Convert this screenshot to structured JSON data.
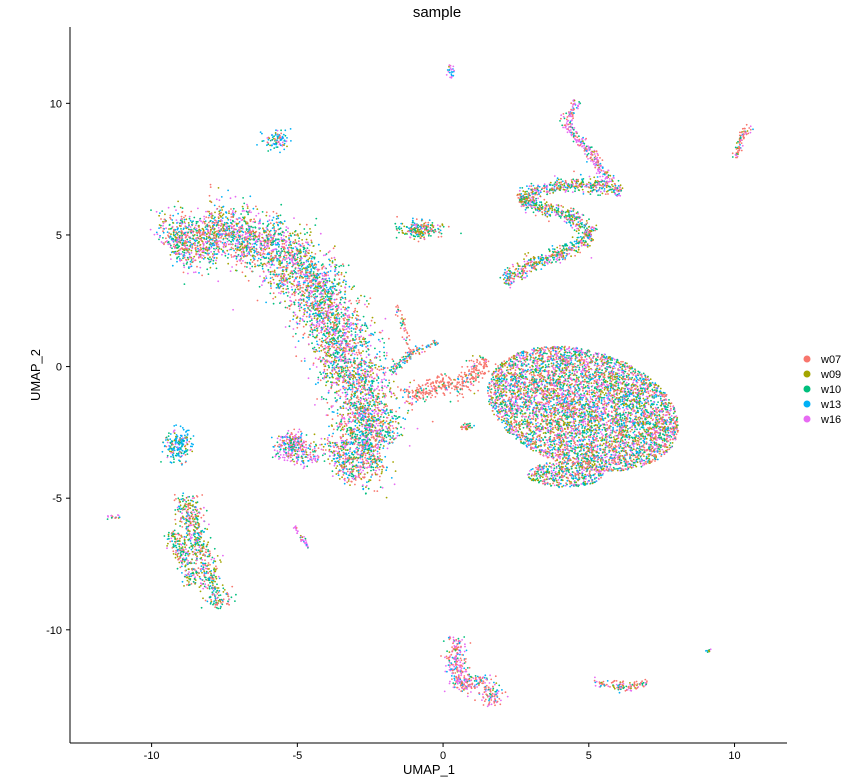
{
  "chart_data": {
    "type": "scatter",
    "title": "sample",
    "xlabel": "UMAP_1",
    "ylabel": "UMAP_2",
    "xlim": [
      -12.8,
      11.8
    ],
    "ylim": [
      -14.3,
      12.9
    ],
    "x_ticks": [
      -10,
      -5,
      0,
      5,
      10
    ],
    "y_ticks": [
      10,
      5,
      0,
      -5,
      -10
    ],
    "x_tick_labels": [
      "-10",
      "-5",
      "0",
      "5",
      "10"
    ],
    "y_tick_labels": [
      "10",
      "5",
      "0",
      "-5",
      "-10"
    ],
    "grid": false,
    "legend_position": "right",
    "series": [
      {
        "name": "w07",
        "color": "#F8766D"
      },
      {
        "name": "w09",
        "color": "#A3A500"
      },
      {
        "name": "w10",
        "color": "#00BF7D"
      },
      {
        "name": "w13",
        "color": "#00B0F6"
      },
      {
        "name": "w16",
        "color": "#E76BF3"
      }
    ],
    "clusters": [
      {
        "id": "big-left-arm",
        "shape": "path",
        "points": [
          [
            -9.3,
            4.4
          ],
          [
            -8.2,
            5.2
          ],
          [
            -6.5,
            5.0
          ],
          [
            -4.9,
            3.8
          ],
          [
            -4.0,
            2.2
          ],
          [
            -3.3,
            0.3
          ],
          [
            -2.6,
            -1.6
          ],
          [
            -2.4,
            -3.0
          ],
          [
            -3.6,
            -3.9
          ]
        ],
        "width": 1.25,
        "count": 5200,
        "weights": [
          0.24,
          0.16,
          0.22,
          0.16,
          0.22
        ]
      },
      {
        "id": "left-hook",
        "shape": "path",
        "points": [
          [
            -5.5,
            -3.5
          ],
          [
            -5.2,
            -2.6
          ],
          [
            -4.5,
            -3.7
          ]
        ],
        "width": 0.5,
        "count": 350,
        "weights": [
          0.2,
          0.1,
          0.15,
          0.15,
          0.4
        ]
      },
      {
        "id": "center-bridge",
        "shape": "path",
        "points": [
          [
            -1.3,
            -1.2
          ],
          [
            -0.3,
            -0.7
          ],
          [
            0.7,
            -0.8
          ],
          [
            1.5,
            0.3
          ]
        ],
        "width": 0.45,
        "count": 360,
        "weights": [
          0.82,
          0.04,
          0.06,
          0.04,
          0.04
        ]
      },
      {
        "id": "center-arc",
        "shape": "path",
        "points": [
          [
            -1.8,
            -0.2
          ],
          [
            -1.0,
            0.6
          ],
          [
            -0.2,
            0.9
          ]
        ],
        "width": 0.18,
        "count": 110,
        "weights": [
          0.3,
          0.1,
          0.2,
          0.3,
          0.1
        ]
      },
      {
        "id": "center-spike",
        "shape": "path",
        "points": [
          [
            -1.6,
            2.5
          ],
          [
            -1.3,
            1.2
          ],
          [
            -1.1,
            0.3
          ]
        ],
        "width": 0.15,
        "count": 55,
        "weights": [
          0.6,
          0.1,
          0.1,
          0.1,
          0.1
        ]
      },
      {
        "id": "center-small",
        "shape": "blob",
        "cx": 0.8,
        "cy": -2.3,
        "rx": 0.18,
        "ry": 0.12,
        "count": 30,
        "weights": [
          0.5,
          0.2,
          0.2,
          0.05,
          0.05
        ]
      },
      {
        "id": "right-big",
        "shape": "ellipse",
        "cx": 4.8,
        "cy": -1.6,
        "rx": 3.4,
        "ry": 2.2,
        "rot": -0.35,
        "count": 5600,
        "weights": [
          0.24,
          0.16,
          0.22,
          0.16,
          0.22
        ]
      },
      {
        "id": "right-big-base",
        "shape": "ellipse",
        "cx": 4.2,
        "cy": -4.1,
        "rx": 1.3,
        "ry": 0.5,
        "rot": 0,
        "count": 450,
        "weights": [
          0.2,
          0.2,
          0.2,
          0.2,
          0.2
        ]
      },
      {
        "id": "upper-right-S",
        "shape": "path",
        "points": [
          [
            2.1,
            3.2
          ],
          [
            3.0,
            3.9
          ],
          [
            4.3,
            4.4
          ],
          [
            5.1,
            5.0
          ],
          [
            4.4,
            5.7
          ],
          [
            3.4,
            6.0
          ],
          [
            2.6,
            6.4
          ],
          [
            3.6,
            6.8
          ],
          [
            5.0,
            6.9
          ],
          [
            6.1,
            6.7
          ]
        ],
        "width": 0.32,
        "count": 1250,
        "weights": [
          0.22,
          0.2,
          0.24,
          0.14,
          0.2
        ]
      },
      {
        "id": "top-right-v",
        "shape": "path",
        "points": [
          [
            5.7,
            7.0
          ],
          [
            5.0,
            8.2
          ],
          [
            4.2,
            9.2
          ],
          [
            4.6,
            10.1
          ]
        ],
        "width": 0.22,
        "count": 280,
        "weights": [
          0.25,
          0.05,
          0.1,
          0.1,
          0.5
        ]
      },
      {
        "id": "far-right-top",
        "shape": "path",
        "points": [
          [
            10.0,
            7.9
          ],
          [
            10.3,
            8.9
          ],
          [
            10.6,
            9.1
          ]
        ],
        "width": 0.14,
        "count": 80,
        "weights": [
          0.6,
          0.05,
          0.1,
          0.1,
          0.15
        ]
      },
      {
        "id": "center-top",
        "shape": "blob",
        "cx": -0.8,
        "cy": 5.2,
        "rx": 0.6,
        "ry": 0.28,
        "count": 220,
        "weights": [
          0.3,
          0.2,
          0.3,
          0.1,
          0.1
        ]
      },
      {
        "id": "top-tiny",
        "shape": "blob",
        "cx": 0.3,
        "cy": 11.2,
        "rx": 0.12,
        "ry": 0.3,
        "count": 25,
        "weights": [
          0.1,
          0.1,
          0.1,
          0.2,
          0.5
        ]
      },
      {
        "id": "upper-left-blue",
        "shape": "blob",
        "cx": -5.7,
        "cy": 8.6,
        "rx": 0.45,
        "ry": 0.35,
        "count": 95,
        "weights": [
          0.1,
          0.05,
          0.15,
          0.5,
          0.2
        ]
      },
      {
        "id": "left-cluster-top",
        "shape": "blob",
        "cx": -9.1,
        "cy": -3.0,
        "rx": 0.45,
        "ry": 0.55,
        "count": 200,
        "weights": [
          0.1,
          0.1,
          0.2,
          0.5,
          0.1
        ]
      },
      {
        "id": "left-cluster-main",
        "shape": "path",
        "points": [
          [
            -8.8,
            -4.9
          ],
          [
            -8.6,
            -6.2
          ],
          [
            -8.3,
            -7.4
          ],
          [
            -7.9,
            -8.4
          ],
          [
            -7.6,
            -9.1
          ]
        ],
        "width": 0.55,
        "count": 600,
        "weights": [
          0.22,
          0.2,
          0.28,
          0.15,
          0.15
        ]
      },
      {
        "id": "left-cluster-branch",
        "shape": "path",
        "points": [
          [
            -9.3,
            -6.3
          ],
          [
            -8.8,
            -7.6
          ],
          [
            -8.6,
            -8.3
          ]
        ],
        "width": 0.3,
        "count": 180,
        "weights": [
          0.2,
          0.3,
          0.3,
          0.1,
          0.1
        ]
      },
      {
        "id": "left-far-small",
        "shape": "blob",
        "cx": -11.3,
        "cy": -5.7,
        "rx": 0.18,
        "ry": 0.1,
        "count": 18,
        "weights": [
          0.2,
          0.1,
          0.1,
          0.1,
          0.5
        ]
      },
      {
        "id": "left-small-purple",
        "shape": "path",
        "points": [
          [
            -5.1,
            -6.1
          ],
          [
            -4.6,
            -6.9
          ]
        ],
        "width": 0.08,
        "count": 35,
        "weights": [
          0.05,
          0.05,
          0.1,
          0.2,
          0.6
        ]
      },
      {
        "id": "bottom-center",
        "shape": "path",
        "points": [
          [
            0.5,
            -10.3
          ],
          [
            0.4,
            -11.4
          ],
          [
            0.6,
            -12.2
          ],
          [
            1.3,
            -11.8
          ],
          [
            1.9,
            -12.8
          ]
        ],
        "width": 0.45,
        "count": 420,
        "weights": [
          0.4,
          0.05,
          0.1,
          0.15,
          0.3
        ]
      },
      {
        "id": "bottom-right",
        "shape": "path",
        "points": [
          [
            5.2,
            -12.0
          ],
          [
            6.2,
            -12.2
          ],
          [
            7.0,
            -12.0
          ]
        ],
        "width": 0.22,
        "count": 110,
        "weights": [
          0.35,
          0.15,
          0.2,
          0.1,
          0.2
        ]
      },
      {
        "id": "bottom-right-tiny",
        "shape": "blob",
        "cx": 9.1,
        "cy": -10.8,
        "rx": 0.12,
        "ry": 0.06,
        "count": 8,
        "weights": [
          0.2,
          0.2,
          0.2,
          0.2,
          0.2
        ]
      }
    ]
  }
}
